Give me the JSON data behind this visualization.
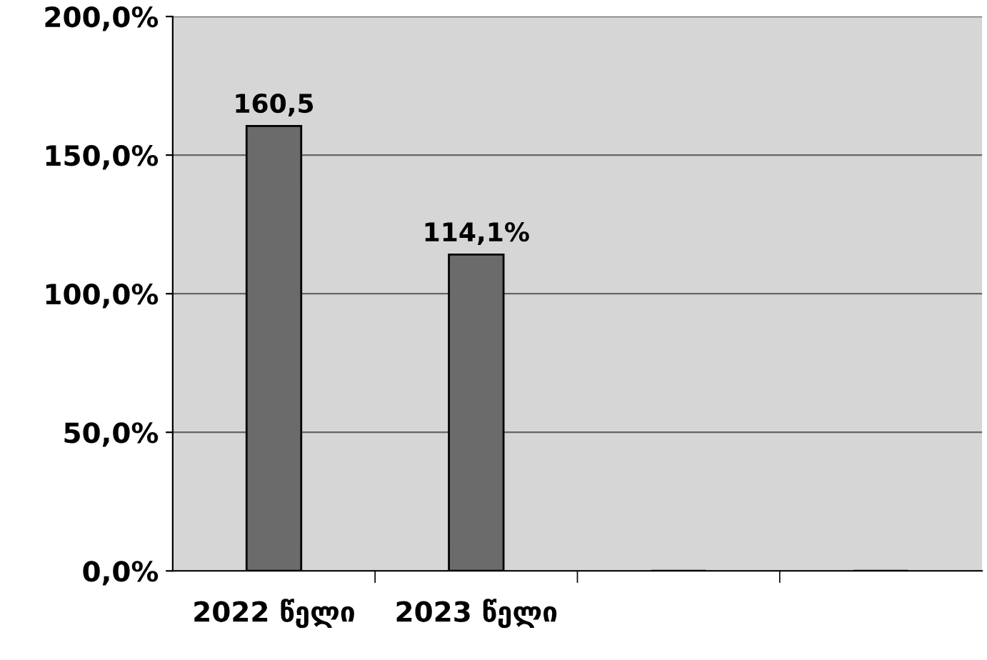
{
  "chart_data": {
    "type": "bar",
    "categories": [
      "2022 წელი",
      "2023 წელი",
      null,
      null
    ],
    "values": [
      160.5,
      114.1,
      null,
      null
    ],
    "value_labels": [
      "160,5",
      "114,1%",
      null,
      null
    ],
    "color": "#6b6b6b",
    "ylim": [
      0,
      200
    ],
    "yticks": [
      {
        "value": 0,
        "label": "0,0%"
      },
      {
        "value": 50,
        "label": "50,0%"
      },
      {
        "value": 100,
        "label": "100,0%"
      },
      {
        "value": 150,
        "label": "150,0%"
      },
      {
        "value": 200,
        "label": "200,0%"
      }
    ],
    "grid": "y",
    "legend": false
  }
}
